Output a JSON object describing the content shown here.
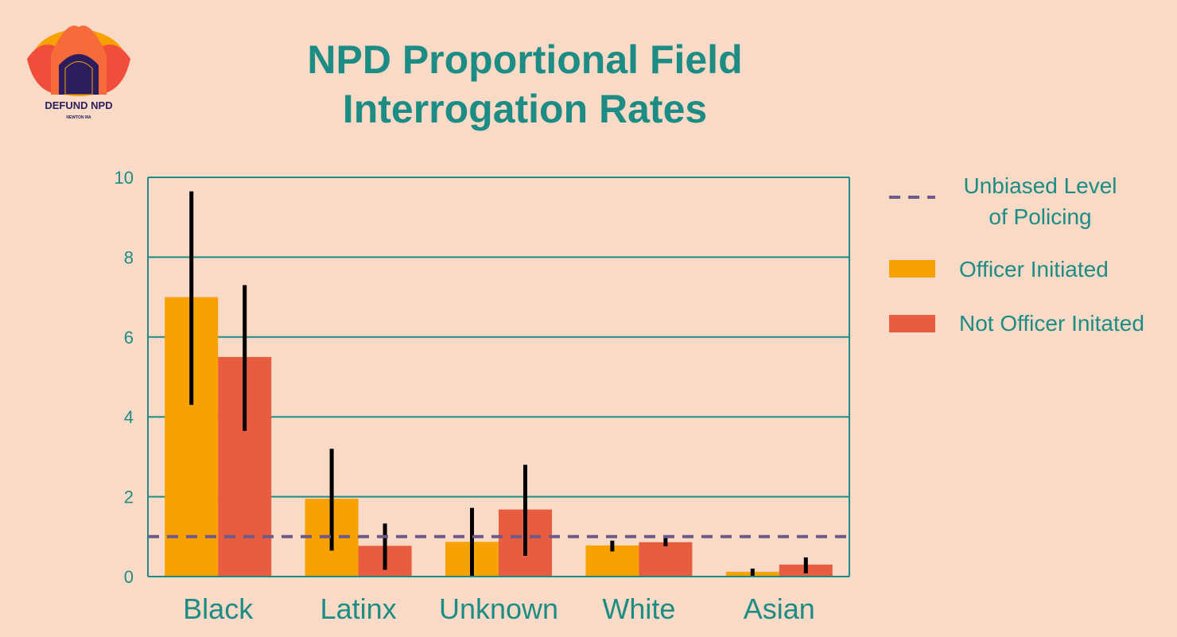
{
  "title_line1": "NPD Proportional Field",
  "title_line2": "Interrogation Rates",
  "logo": {
    "text": "DEFUND NPD",
    "subtext": "NEWTON MA",
    "icon": "lotus-arch-logo-icon"
  },
  "colors": {
    "background": "#f9dac6",
    "teal": "#1c8c84",
    "officer": "#f7a200",
    "not_officer": "#e85c40",
    "reference": "#6e5a8a"
  },
  "chart_data": {
    "type": "bar",
    "title": "NPD Proportional Field Interrogation Rates",
    "categories": [
      "Black",
      "Latinx",
      "Unknown",
      "White",
      "Asian"
    ],
    "series": [
      {
        "name": "Officer Initiated",
        "values": [
          7.0,
          1.95,
          0.87,
          0.78,
          0.12
        ],
        "error_low": [
          4.3,
          0.65,
          0.0,
          0.63,
          0.02
        ],
        "error_high": [
          9.65,
          3.2,
          1.72,
          0.9,
          0.2
        ]
      },
      {
        "name": "Not Officer Initated",
        "values": [
          5.5,
          0.77,
          1.68,
          0.86,
          0.3
        ],
        "error_low": [
          3.65,
          0.17,
          0.52,
          0.76,
          0.08
        ],
        "error_high": [
          7.3,
          1.33,
          2.8,
          0.97,
          0.48
        ]
      }
    ],
    "reference_line": {
      "name": "Unbiased Level of Policing",
      "name_line1": "Unbiased Level",
      "name_line2": "of Policing",
      "value": 1
    },
    "yticks": [
      "0",
      "2",
      "4",
      "6",
      "8",
      "10"
    ],
    "ylim": [
      0,
      10
    ],
    "xlabel": "",
    "ylabel": "",
    "grid": true,
    "legend_position": "right"
  }
}
